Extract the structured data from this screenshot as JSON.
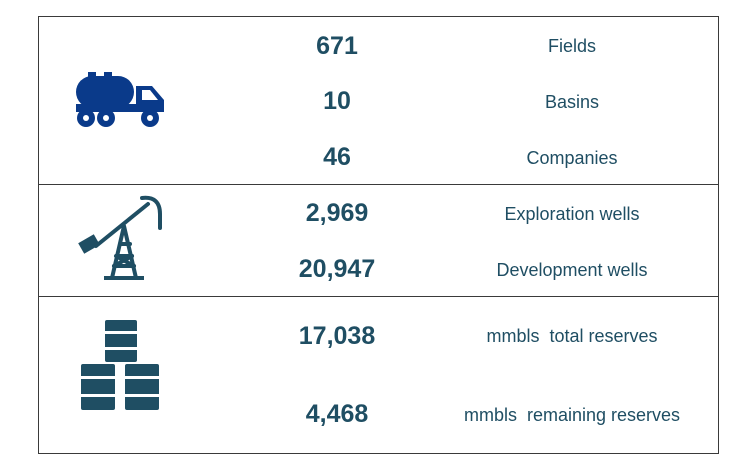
{
  "colors": {
    "truck": "#0a3a8a",
    "icons": "#1f4e63",
    "text": "#1f4e63",
    "border": "#3a3a3a"
  },
  "sections": [
    {
      "icon": "tanker-truck-icon",
      "rows": [
        {
          "value": "671",
          "label": "Fields"
        },
        {
          "value": "10",
          "label": "Basins"
        },
        {
          "value": "46",
          "label": "Companies"
        }
      ]
    },
    {
      "icon": "oil-pump-jack-icon",
      "rows": [
        {
          "value": "2,969",
          "label": "Exploration wells"
        },
        {
          "value": "20,947",
          "label": "Development wells"
        }
      ]
    },
    {
      "icon": "oil-barrels-icon",
      "rows": [
        {
          "value": "17,038",
          "label": "mmbls  total reserves"
        },
        {
          "value": "4,468",
          "label": "mmbls  remaining reserves"
        }
      ]
    }
  ]
}
